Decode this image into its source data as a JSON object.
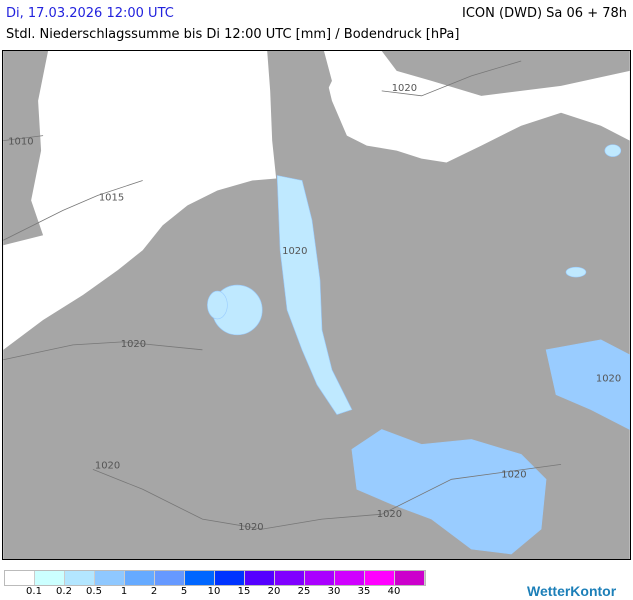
{
  "header": {
    "valid_time": "Di, 17.03.2026 12:00 UTC",
    "model_run": "ICON (DWD) Sa 06 + 78h",
    "parameter": "Stdl. Niederschlagssumme bis Di 12:00 UTC [mm] / Bodendruck [hPa]"
  },
  "map": {
    "isobar_labels": [
      "1010",
      "1015",
      "1020",
      "1020",
      "1020",
      "1020",
      "1020",
      "1020",
      "1020",
      "1020"
    ],
    "land_color": "#a6a6a6",
    "sea_color": "#ffffff"
  },
  "legend": {
    "colors": [
      "#ffffff",
      "#ccffff",
      "#b3e6ff",
      "#8fc8ff",
      "#66aaff",
      "#6699ff",
      "#0066ff",
      "#0033ff",
      "#5500ff",
      "#8000ff",
      "#aa00ff",
      "#d000ff",
      "#ff00ff",
      "#cc00cc"
    ],
    "labels": [
      "0.1",
      "0.2",
      "0.5",
      "1",
      "2",
      "5",
      "10",
      "15",
      "20",
      "25",
      "30",
      "35",
      "40"
    ]
  },
  "brand": {
    "logo": "WetterKontor"
  }
}
